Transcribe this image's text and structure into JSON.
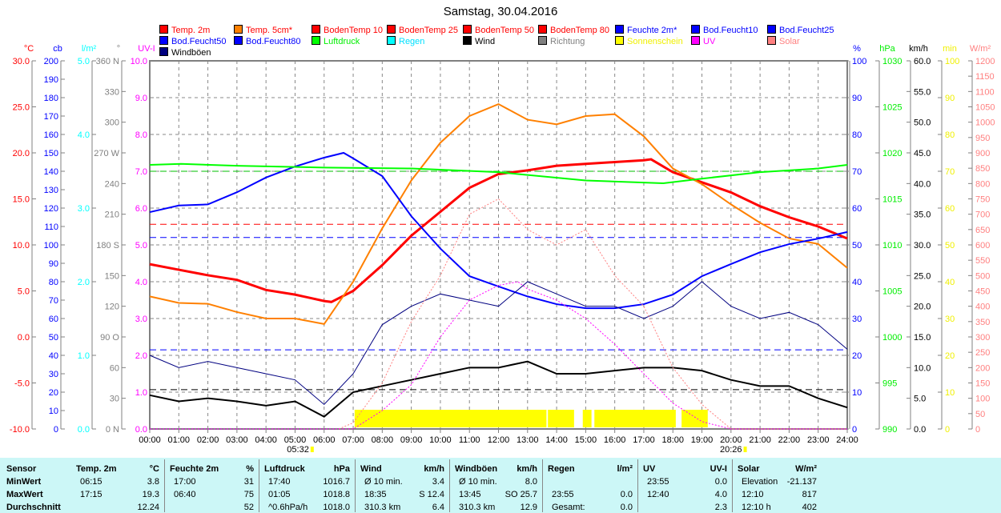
{
  "title": "Samstag, 30.04.2016",
  "legend": [
    {
      "label": "Temp. 2m",
      "color": "#ff0000",
      "text": "#ff0000"
    },
    {
      "label": "Temp. 5cm*",
      "color": "#ff8000",
      "text": "#ff0000"
    },
    {
      "label": "BodenTemp 10",
      "color": "#ff0000",
      "text": "#ff0000"
    },
    {
      "label": "BodenTemp 25",
      "color": "#ff0000",
      "text": "#ff0000"
    },
    {
      "label": "BodenTemp 50",
      "color": "#ff0000",
      "text": "#ff0000"
    },
    {
      "label": "BodenTemp 80",
      "color": "#ff0000",
      "text": "#ff0000"
    },
    {
      "label": "Feuchte 2m*",
      "color": "#0000ff",
      "text": "#0000ff"
    },
    {
      "label": "Bod.Feucht10",
      "color": "#0000ff",
      "text": "#0000ff"
    },
    {
      "label": "Bod.Feucht25",
      "color": "#0000ff",
      "text": "#0000ff"
    },
    {
      "label": "Bod.Feucht50",
      "color": "#0000ff",
      "text": "#0000ff"
    },
    {
      "label": "Bod.Feucht80",
      "color": "#0000ff",
      "text": "#0000ff"
    },
    {
      "label": "Luftdruck",
      "color": "#00ff00",
      "text": "#00ee00"
    },
    {
      "label": "Regen",
      "color": "#00ffff",
      "text": "#00e0ff"
    },
    {
      "label": "Wind",
      "color": "#000000",
      "text": "#000000"
    },
    {
      "label": "Richtung",
      "color": "#808080",
      "text": "#808080"
    },
    {
      "label": "Sonnenschein",
      "color": "#ffff00",
      "text": "#f0f000"
    },
    {
      "label": "UV",
      "color": "#ff00ff",
      "text": "#ff00ff"
    },
    {
      "label": "Solar",
      "color": "#ff8080",
      "text": "#ff8080"
    },
    {
      "label": "Windböen",
      "color": "#000080",
      "text": "#000000"
    }
  ],
  "chart_data": {
    "type": "line",
    "title": "Samstag, 30.04.2016",
    "x_ticks": [
      "00:00",
      "01:00",
      "02:00",
      "03:00",
      "04:00",
      "05:00",
      "06:00",
      "07:00",
      "08:00",
      "09:00",
      "10:00",
      "11:00",
      "12:00",
      "13:00",
      "14:00",
      "15:00",
      "16:00",
      "17:00",
      "18:00",
      "19:00",
      "20:00",
      "21:00",
      "22:00",
      "23:00",
      "24:00"
    ],
    "sunrise": "05:32",
    "sunset": "20:26",
    "grid": true,
    "axes": {
      "left": [
        {
          "unit": "°C",
          "color": "#ff0000",
          "min": -10,
          "max": 30,
          "step": 5,
          "decimals": 1
        },
        {
          "unit": "cb",
          "color": "#0000ff",
          "min": 0,
          "max": 200,
          "step": 10,
          "decimals": 0
        },
        {
          "unit": "l/m²",
          "color": "#00ffff",
          "min": 0,
          "max": 5,
          "step": 1,
          "decimals": 1
        },
        {
          "unit": "°",
          "color": "#808080",
          "min": 0,
          "max": 360,
          "step": 30,
          "decimals": 0,
          "labels": {
            "360": "360 N",
            "270": "270 W",
            "180": "180 S",
            "90": "90 O",
            "0": "0 N"
          }
        },
        {
          "unit": "UV-I",
          "color": "#ff00ff",
          "min": 0,
          "max": 10,
          "step": 1,
          "decimals": 1
        }
      ],
      "right": [
        {
          "unit": "%",
          "color": "#0000ff",
          "min": 0,
          "max": 100,
          "step": 10,
          "decimals": 0
        },
        {
          "unit": "hPa",
          "color": "#00ee00",
          "min": 990,
          "max": 1030,
          "step": 5,
          "decimals": 0
        },
        {
          "unit": "km/h",
          "color": "#000000",
          "min": 0,
          "max": 60,
          "step": 5,
          "decimals": 1
        },
        {
          "unit": "min",
          "color": "#f0f000",
          "min": 0,
          "max": 100,
          "step": 10,
          "decimals": 0
        },
        {
          "unit": "W/m²",
          "color": "#ff8080",
          "min": 0,
          "max": 1200,
          "step": 50,
          "decimals": 0
        }
      ]
    },
    "series": [
      {
        "name": "Temp. 2m",
        "axis": "°C",
        "color": "#ff0000",
        "width": 3,
        "x": [
          0,
          1,
          2,
          3,
          4,
          5,
          6,
          6.25,
          7,
          8,
          9,
          10,
          11,
          12,
          13,
          14,
          15,
          16,
          17,
          17.25,
          18,
          19,
          20,
          21,
          22,
          23,
          24
        ],
        "y": [
          7.9,
          7.3,
          6.7,
          6.2,
          5.1,
          4.6,
          3.9,
          3.8,
          5.0,
          7.8,
          11.0,
          13.6,
          16.2,
          17.7,
          18.1,
          18.6,
          18.8,
          19.0,
          19.2,
          19.3,
          17.9,
          16.8,
          15.7,
          14.2,
          13.0,
          12.0,
          10.7
        ]
      },
      {
        "name": "Temp. 5cm*",
        "axis": "°C",
        "color": "#ff8000",
        "width": 2,
        "x": [
          0,
          1,
          2,
          3,
          4,
          5,
          6,
          7,
          8,
          9,
          10,
          11,
          12,
          13,
          14,
          15,
          16,
          17,
          18,
          19,
          20,
          21,
          22,
          23,
          24
        ],
        "y": [
          4.4,
          3.7,
          3.6,
          2.7,
          2.0,
          2.0,
          1.4,
          6.0,
          11.8,
          17.0,
          21.1,
          24.0,
          25.3,
          23.6,
          23.1,
          24.0,
          24.2,
          21.8,
          18.3,
          16.6,
          14.4,
          12.4,
          10.7,
          10.1,
          7.5
        ]
      },
      {
        "name": "Feuchte 2m*",
        "axis": "%",
        "color": "#0000ff",
        "width": 2,
        "x": [
          0,
          1,
          2,
          3,
          4,
          5,
          6,
          6.67,
          7,
          8,
          9,
          10,
          11,
          12,
          13,
          14,
          15,
          16,
          17,
          18,
          19,
          20,
          21,
          22,
          23,
          24
        ],
        "y": [
          58.9,
          60.7,
          61,
          64.3,
          68.3,
          71.3,
          73.7,
          75,
          73.5,
          68.7,
          57.8,
          49,
          41.5,
          38.7,
          36,
          33.9,
          32.8,
          32.8,
          33.9,
          36.5,
          41.5,
          44.8,
          48,
          50.2,
          51.7,
          53.5
        ]
      },
      {
        "name": "Luftdruck",
        "axis": "hPa",
        "color": "#00ff00",
        "width": 2,
        "x": [
          0,
          1.08,
          3,
          6,
          9,
          12,
          15,
          17.67,
          19,
          21,
          23,
          24
        ],
        "y": [
          1018.7,
          1018.8,
          1018.6,
          1018.4,
          1018.3,
          1017.9,
          1017.0,
          1016.7,
          1017.2,
          1017.9,
          1018.3,
          1018.7
        ]
      },
      {
        "name": "Wind",
        "axis": "km/h",
        "color": "#000000",
        "width": 2,
        "x": [
          0,
          1,
          2,
          3,
          4,
          5,
          6,
          7,
          8,
          9,
          10,
          11,
          12,
          13,
          14,
          15,
          16,
          17,
          18,
          19,
          20,
          21,
          22,
          23,
          24
        ],
        "y": [
          5.5,
          4.5,
          5,
          4.5,
          3.8,
          4.5,
          2,
          6,
          7,
          8,
          9,
          10,
          10,
          11,
          9,
          9,
          9.5,
          10,
          10,
          9.5,
          8,
          7,
          7,
          5,
          3.5
        ]
      },
      {
        "name": "Windböen",
        "axis": "km/h",
        "color": "#000080",
        "width": 1,
        "x": [
          0,
          1,
          2,
          3,
          4,
          5,
          6,
          7,
          8,
          9,
          10,
          11,
          12,
          13,
          14,
          15,
          16,
          17,
          18,
          19,
          20,
          21,
          22,
          23,
          24
        ],
        "y": [
          12,
          10,
          11,
          10,
          9,
          8,
          4,
          9,
          17,
          20,
          22,
          21,
          20,
          24,
          22,
          20,
          20,
          18,
          20,
          24,
          20,
          18,
          19,
          17,
          13
        ]
      },
      {
        "name": "Solar",
        "axis": "W/m²",
        "color": "#ff8080",
        "width": 1,
        "dash": "2,2",
        "x": [
          0,
          6.5,
          7,
          8,
          9,
          10,
          11,
          12,
          13,
          14,
          15,
          16,
          17,
          18,
          19,
          20,
          24
        ],
        "y": [
          0,
          0,
          20,
          150,
          350,
          500,
          700,
          750,
          650,
          600,
          650,
          500,
          400,
          200,
          80,
          0,
          0
        ]
      },
      {
        "name": "UV",
        "axis": "UV-I",
        "color": "#ff00ff",
        "width": 1,
        "dash": "2,2",
        "x": [
          0,
          7,
          8,
          9,
          10,
          11,
          12,
          12.67,
          13,
          14,
          15,
          16,
          17,
          18,
          19,
          20,
          24
        ],
        "y": [
          0,
          0,
          0.5,
          1.2,
          2.5,
          3.5,
          3.9,
          4.0,
          3.8,
          3.5,
          3.0,
          2.3,
          1.5,
          0.7,
          0.2,
          0,
          0
        ]
      }
    ],
    "averages": [
      {
        "name": "Temp. 2m",
        "axis": "°C",
        "color": "#ff0000",
        "value": 12.24
      },
      {
        "name": "Feuchte 2m*",
        "axis": "%",
        "color": "#0000ff",
        "value": 52
      },
      {
        "name": "Luftdruck",
        "axis": "hPa",
        "color": "#00c000",
        "value": 1018.0
      },
      {
        "name": "Wind",
        "axis": "km/h",
        "color": "#000000",
        "value": 6.4
      },
      {
        "name": "Windböen",
        "axis": "km/h",
        "color": "#0000ff",
        "value": 12.9
      }
    ],
    "sunshine": [
      [
        7.05,
        13.65
      ],
      [
        13.7,
        14.6
      ],
      [
        14.9,
        15.2
      ],
      [
        15.3,
        18.1
      ],
      [
        18.3,
        19.2
      ]
    ]
  },
  "table": {
    "headers": [
      {
        "label": "Sensor"
      },
      {
        "label": "Temp. 2m",
        "unit": "°C"
      },
      {
        "label": "Feuchte 2m",
        "unit": "%"
      },
      {
        "label": "Luftdruck",
        "unit": "hPa"
      },
      {
        "label": "Wind",
        "unit": "km/h"
      },
      {
        "label": "Windböen",
        "unit": "km/h"
      },
      {
        "label": "Regen",
        "unit": "l/m²"
      },
      {
        "label": "UV",
        "unit": "UV-I"
      },
      {
        "label": "Solar",
        "unit": "W/m²"
      }
    ],
    "rows": [
      {
        "label": "MinWert",
        "cells": [
          [
            "06:15",
            "3.8"
          ],
          [
            "17:00",
            "31"
          ],
          [
            "17:40",
            "1016.7"
          ],
          [
            "Ø 10 min.",
            "3.4"
          ],
          [
            "Ø 10 min.",
            "8.0"
          ],
          [
            "",
            ""
          ],
          [
            "23:55",
            "0.0"
          ],
          [
            "Elevation",
            "-21.137"
          ]
        ]
      },
      {
        "label": "MaxWert",
        "cells": [
          [
            "17:15",
            "19.3"
          ],
          [
            "06:40",
            "75"
          ],
          [
            "01:05",
            "1018.8"
          ],
          [
            "18:35",
            "S 12.4"
          ],
          [
            "13:45",
            "SO 25.7"
          ],
          [
            "23:55",
            "0.0"
          ],
          [
            "12:40",
            "4.0"
          ],
          [
            "12:10",
            "817"
          ]
        ]
      },
      {
        "label": "Durchschnitt",
        "cells": [
          [
            "",
            "12.24"
          ],
          [
            "",
            "52"
          ],
          [
            "^0.6hPa/h",
            "1018.0"
          ],
          [
            "310.3 km",
            "6.4"
          ],
          [
            "310.3 km",
            "12.9"
          ],
          [
            "Gesamt:",
            "0.0"
          ],
          [
            "",
            "2.3"
          ],
          [
            "12:10 h",
            "402"
          ]
        ]
      }
    ]
  }
}
